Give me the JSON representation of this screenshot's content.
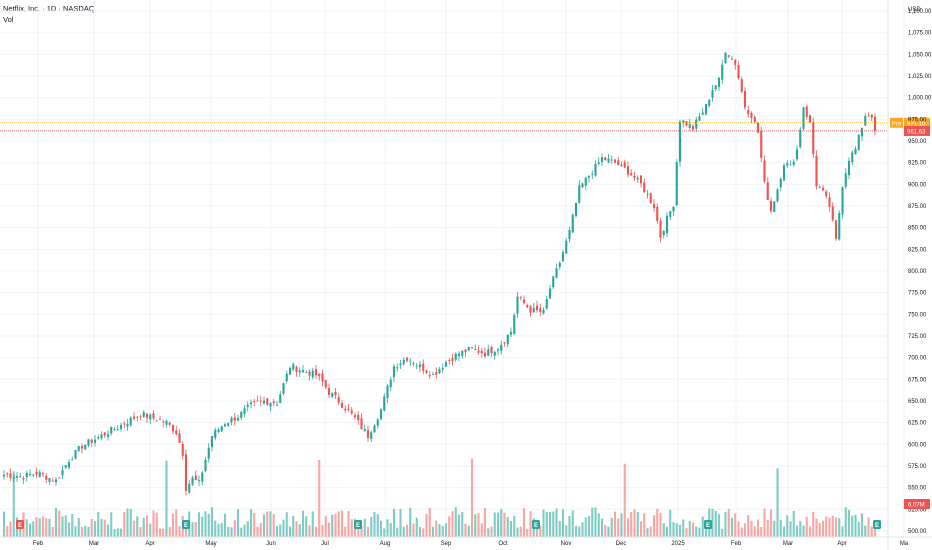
{
  "legend": {
    "title": "Netflix, Inc. · 1D · NASDAQ",
    "volume_label": "Vol"
  },
  "colors": {
    "up": "#26a69a",
    "down": "#ef5350",
    "vol_up": "#80cbc4",
    "vol_down": "#f7a6a4",
    "pre_line": "#f9a825",
    "last_line": "#ef5350"
  },
  "chart_data": {
    "type": "candlestick",
    "currency": "USD",
    "ylim": [
      493,
      1107
    ],
    "y_ticks": [
      500,
      525,
      550,
      575,
      600,
      625,
      650,
      675,
      700,
      725,
      750,
      775,
      800,
      825,
      850,
      875,
      900,
      925,
      950,
      975,
      1000,
      1025,
      1050,
      1075,
      1100
    ],
    "x_ticks": [
      "Feb",
      "Mar",
      "Apr",
      "May",
      "Jun",
      "Jul",
      "Aug",
      "Sep",
      "Oct",
      "Nov",
      "Dec",
      "2025",
      "Feb",
      "Mar",
      "Apr",
      "Ma"
    ],
    "price_anchors": [
      [
        0,
        565
      ],
      [
        6,
        563
      ],
      [
        10,
        567
      ],
      [
        16,
        558
      ],
      [
        20,
        582
      ],
      [
        24,
        598
      ],
      [
        30,
        610
      ],
      [
        36,
        622
      ],
      [
        42,
        635
      ],
      [
        46,
        630
      ],
      [
        50,
        625
      ],
      [
        53,
        614
      ],
      [
        55,
        590
      ],
      [
        56,
        550
      ],
      [
        58,
        560
      ],
      [
        60,
        555
      ],
      [
        64,
        610
      ],
      [
        68,
        625
      ],
      [
        72,
        632
      ],
      [
        76,
        645
      ],
      [
        80,
        650
      ],
      [
        84,
        648
      ],
      [
        88,
        690
      ],
      [
        92,
        685
      ],
      [
        96,
        680
      ],
      [
        98,
        672
      ],
      [
        100,
        660
      ],
      [
        103,
        650
      ],
      [
        108,
        630
      ],
      [
        112,
        610
      ],
      [
        116,
        640
      ],
      [
        120,
        690
      ],
      [
        124,
        700
      ],
      [
        128,
        690
      ],
      [
        132,
        680
      ],
      [
        136,
        695
      ],
      [
        140,
        705
      ],
      [
        144,
        710
      ],
      [
        148,
        705
      ],
      [
        152,
        712
      ],
      [
        156,
        730
      ],
      [
        158,
        770
      ],
      [
        162,
        755
      ],
      [
        166,
        752
      ],
      [
        168,
        780
      ],
      [
        171,
        810
      ],
      [
        174,
        845
      ],
      [
        177,
        895
      ],
      [
        180,
        910
      ],
      [
        184,
        930
      ],
      [
        188,
        925
      ],
      [
        192,
        915
      ],
      [
        196,
        900
      ],
      [
        200,
        875
      ],
      [
        202,
        840
      ],
      [
        204,
        860
      ],
      [
        206,
        878
      ],
      [
        208,
        975
      ],
      [
        212,
        965
      ],
      [
        216,
        990
      ],
      [
        218,
        1010
      ],
      [
        220,
        1020
      ],
      [
        222,
        1055
      ],
      [
        225,
        1040
      ],
      [
        228,
        990
      ],
      [
        230,
        980
      ],
      [
        232,
        960
      ],
      [
        234,
        900
      ],
      [
        236,
        870
      ],
      [
        238,
        895
      ],
      [
        240,
        925
      ],
      [
        242,
        920
      ],
      [
        244,
        940
      ],
      [
        246,
        990
      ],
      [
        248,
        970
      ],
      [
        250,
        900
      ],
      [
        252,
        890
      ],
      [
        254,
        875
      ],
      [
        256,
        835
      ],
      [
        258,
        900
      ],
      [
        260,
        930
      ],
      [
        262,
        940
      ],
      [
        265,
        980
      ],
      [
        267,
        980
      ],
      [
        268,
        962
      ]
    ],
    "earnings_markers": [
      "E",
      "E",
      "E",
      "E"
    ],
    "dividend_markers": [
      "E"
    ],
    "pre_market": {
      "label": "Pre",
      "value": "971.10"
    },
    "last_price": {
      "value": "961.63"
    },
    "volume_last": "6.07M"
  }
}
